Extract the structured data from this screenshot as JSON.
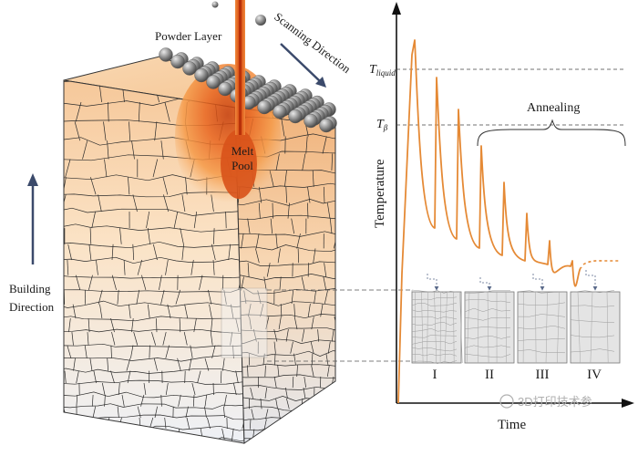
{
  "block": {
    "powder_label": "Powder Layer",
    "scan_label": "Scanning Direction",
    "melt_label_line1": "Melt",
    "melt_label_line2": "Pool",
    "build_label_line1": "Building",
    "build_label_line2": "Direction"
  },
  "graph": {
    "y_axis_label": "Temperature",
    "x_axis_label": "Time",
    "t_liquid_main": "T",
    "t_liquid_sub": "liquid",
    "t_beta_main": "T",
    "t_beta_sub": "β",
    "annealing_label": "Annealing",
    "stages": [
      "I",
      "II",
      "III",
      "IV"
    ]
  },
  "watermark": "3D打印技术参",
  "colors": {
    "curve": "#e58a36",
    "melt_core": "#d24a10",
    "melt_glow": "#f7a24c",
    "block_front": "#f6dcbc",
    "grain_line": "#2a2a2a",
    "powder": "#8a8a8a",
    "direction_arrow": "#3b4a6b"
  }
}
